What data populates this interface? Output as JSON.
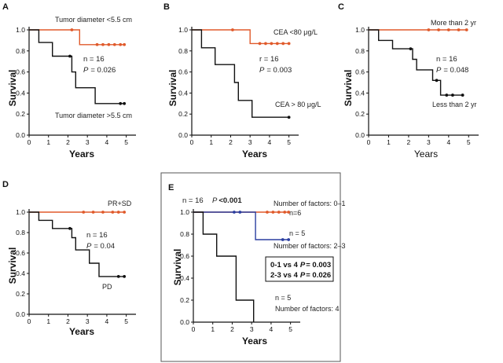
{
  "chart_data": [
    {
      "panel": "A",
      "type": "line",
      "step": true,
      "xlabel": "Years",
      "ylabel": "Survival",
      "xlim": [
        0,
        5.5
      ],
      "ylim": [
        0,
        1.0
      ],
      "xticks": [
        "0",
        "1",
        "2",
        "3",
        "4",
        "5"
      ],
      "yticks": [
        "0.0",
        "0.2",
        "0.4",
        "0.6",
        "0.8",
        "1.0"
      ],
      "series": [
        {
          "name": "Tumor diameter <5.5 cm",
          "color": "#e05a2b",
          "x": [
            0,
            2.6,
            2.6,
            4.9
          ],
          "y": [
            1.0,
            1.0,
            0.86,
            0.86
          ],
          "censor_x": [
            2.2,
            3.5,
            3.8,
            4.1,
            4.4,
            4.7,
            4.9
          ],
          "censor_y": [
            1.0,
            0.86,
            0.86,
            0.86,
            0.86,
            0.86,
            0.86
          ]
        },
        {
          "name": "Tumor diameter >5.5 cm",
          "color": "#111111",
          "x": [
            0,
            0.5,
            0.5,
            1.2,
            1.2,
            2.2,
            2.2,
            2.4,
            2.4,
            3.4,
            3.4,
            4.9
          ],
          "y": [
            1.0,
            1.0,
            0.88,
            0.88,
            0.75,
            0.75,
            0.6,
            0.6,
            0.45,
            0.45,
            0.3,
            0.3
          ],
          "censor_x": [
            2.1,
            4.7,
            4.9
          ],
          "censor_y": [
            0.75,
            0.3,
            0.3
          ]
        }
      ],
      "annotations": [
        {
          "text": "Tumor diameter <5.5 cm"
        },
        {
          "text": "Tumor diameter >5.5 cm"
        }
      ],
      "stats": {
        "n": "n = 16",
        "p_label": "P",
        "p_value": "= 0.026"
      }
    },
    {
      "panel": "B",
      "type": "line",
      "step": true,
      "xlabel": "Years",
      "ylabel": "Survival",
      "xlim": [
        0,
        5.5
      ],
      "ylim": [
        0,
        1.0
      ],
      "xticks": [
        "0",
        "1",
        "2",
        "3",
        "4",
        "5"
      ],
      "yticks": [
        "0.0",
        "0.2",
        "0.4",
        "0.6",
        "0.8",
        "1.0"
      ],
      "series": [
        {
          "name": "CEA <80 μg/L",
          "color": "#e05a2b",
          "x": [
            0,
            3.0,
            3.0,
            5.0
          ],
          "y": [
            1.0,
            1.0,
            0.87,
            0.87
          ],
          "censor_x": [
            2.1,
            3.5,
            3.8,
            4.1,
            4.4,
            4.7,
            5.0
          ],
          "censor_y": [
            1.0,
            0.87,
            0.87,
            0.87,
            0.87,
            0.87,
            0.87
          ]
        },
        {
          "name": "CEA > 80 μg/L",
          "color": "#111111",
          "x": [
            0,
            0.5,
            0.5,
            1.2,
            1.2,
            2.2,
            2.2,
            2.4,
            2.4,
            3.1,
            3.1,
            5.0
          ],
          "y": [
            1.0,
            1.0,
            0.83,
            0.83,
            0.67,
            0.67,
            0.5,
            0.5,
            0.33,
            0.33,
            0.17,
            0.17
          ],
          "censor_x": [
            5.0
          ],
          "censor_y": [
            0.17
          ]
        }
      ],
      "annotations": [
        {
          "text": "CEA <80 μg/L"
        },
        {
          "text": "CEA > 80 μg/L"
        }
      ],
      "stats": {
        "n": "r = 16",
        "p_label": "P",
        "p_value": "= 0.003"
      }
    },
    {
      "panel": "C",
      "type": "line",
      "step": true,
      "xlabel": "Years",
      "ylabel": "Survival",
      "xlim": [
        0,
        5.5
      ],
      "ylim": [
        0,
        1.0
      ],
      "xticks": [
        "0",
        "1",
        "2",
        "3",
        "4",
        "5"
      ],
      "yticks": [
        "0.0",
        "0.2",
        "0.4",
        "0.6",
        "0.8",
        "1.0"
      ],
      "series": [
        {
          "name": "More than 2 yr",
          "color": "#e05a2b",
          "x": [
            0,
            4.9
          ],
          "y": [
            1.0,
            1.0
          ],
          "censor_x": [
            3.0,
            3.5,
            4.0,
            4.5,
            4.9
          ],
          "censor_y": [
            1.0,
            1.0,
            1.0,
            1.0,
            1.0
          ]
        },
        {
          "name": "Less than 2 yr",
          "color": "#111111",
          "x": [
            0,
            0.5,
            0.5,
            1.2,
            1.2,
            2.2,
            2.2,
            2.4,
            2.4,
            3.2,
            3.2,
            3.6,
            3.6,
            4.7
          ],
          "y": [
            1.0,
            1.0,
            0.9,
            0.9,
            0.82,
            0.82,
            0.72,
            0.72,
            0.62,
            0.62,
            0.52,
            0.52,
            0.38,
            0.38
          ],
          "censor_x": [
            2.1,
            3.4,
            3.9,
            4.2,
            4.7
          ],
          "censor_y": [
            0.82,
            0.52,
            0.38,
            0.38,
            0.38
          ]
        }
      ],
      "annotations": [
        {
          "text": "More than 2 yr"
        },
        {
          "text": "Less than 2 yr"
        }
      ],
      "stats": {
        "n": "n = 16",
        "p_label": "P",
        "p_value": "= 0.048"
      }
    },
    {
      "panel": "D",
      "type": "line",
      "step": true,
      "xlabel": "Years",
      "ylabel": "Survival",
      "xlim": [
        0,
        5.5
      ],
      "ylim": [
        0,
        1.0
      ],
      "xticks": [
        "0",
        "1",
        "2",
        "3",
        "4",
        "5"
      ],
      "yticks": [
        "0.0",
        "0.2",
        "0.4",
        "0.6",
        "0.8",
        "1.0"
      ],
      "series": [
        {
          "name": "PR+SD",
          "color": "#e05a2b",
          "x": [
            0,
            4.9
          ],
          "y": [
            1.0,
            1.0
          ],
          "censor_x": [
            2.8,
            3.3,
            3.8,
            4.3,
            4.6,
            4.9
          ],
          "censor_y": [
            1.0,
            1.0,
            1.0,
            1.0,
            1.0,
            1.0
          ]
        },
        {
          "name": "PD",
          "color": "#111111",
          "x": [
            0,
            0.5,
            0.5,
            1.2,
            1.2,
            2.2,
            2.2,
            2.4,
            2.4,
            3.1,
            3.1,
            3.6,
            3.6,
            4.9
          ],
          "y": [
            1.0,
            1.0,
            0.92,
            0.92,
            0.84,
            0.84,
            0.75,
            0.75,
            0.63,
            0.63,
            0.5,
            0.5,
            0.37,
            0.37
          ],
          "censor_x": [
            2.1,
            4.6,
            4.9
          ],
          "censor_y": [
            0.84,
            0.37,
            0.37
          ]
        }
      ],
      "annotations": [
        {
          "text": "PR+SD"
        },
        {
          "text": "PD"
        }
      ],
      "stats": {
        "n": "n = 16",
        "p_label": "P",
        "p_value": "= 0.04"
      }
    },
    {
      "panel": "E",
      "type": "line",
      "step": true,
      "xlabel": "Years",
      "ylabel": "Survival",
      "xlim": [
        0,
        5.5
      ],
      "ylim": [
        0,
        1.0
      ],
      "xticks": [
        "0",
        "1",
        "2",
        "3",
        "4",
        "5"
      ],
      "yticks": [
        "0.0",
        "0.2",
        "0.4",
        "0.6",
        "0.8",
        "1.0"
      ],
      "series": [
        {
          "name": "Number of factors: 0–1",
          "color": "#e05a2b",
          "x": [
            0,
            4.9
          ],
          "y": [
            1.0,
            1.0
          ],
          "censor_x": [
            3.8,
            4.1,
            4.4,
            4.7,
            4.9
          ],
          "censor_y": [
            1.0,
            1.0,
            1.0,
            1.0,
            1.0
          ]
        },
        {
          "name": "Number of factors: 2–3",
          "color": "#2b3fa0",
          "x": [
            0,
            3.2,
            3.2,
            4.9
          ],
          "y": [
            1.0,
            1.0,
            0.75,
            0.75
          ],
          "censor_x": [
            2.1,
            2.4,
            4.6,
            4.9
          ],
          "censor_y": [
            1.0,
            1.0,
            0.75,
            0.75
          ]
        },
        {
          "name": "Number of factors: 4",
          "color": "#111111",
          "x": [
            0,
            0.5,
            0.5,
            1.2,
            1.2,
            2.2,
            2.2,
            3.1,
            3.1
          ],
          "y": [
            1.0,
            1.0,
            0.8,
            0.8,
            0.6,
            0.6,
            0.2,
            0.2,
            0.0
          ],
          "censor_x": [],
          "censor_y": []
        }
      ],
      "annotations": [
        {
          "text": "Number of factors: 0–1"
        },
        {
          "text": "n=6"
        },
        {
          "text": "n = 5"
        },
        {
          "text": "Number of factors: 2–3"
        },
        {
          "text": "n = 5"
        },
        {
          "text": "Number of factors: 4"
        }
      ],
      "stats": {
        "n": "n = 16",
        "p_label": "P",
        "p_value": "<0.001"
      },
      "comparison_box": [
        {
          "label": "0-1 vs  4",
          "p_label": "P",
          "p_value": "= 0.003"
        },
        {
          "label": "2-3 vs  4",
          "p_label": "P",
          "p_value": "= 0.026"
        }
      ]
    }
  ]
}
